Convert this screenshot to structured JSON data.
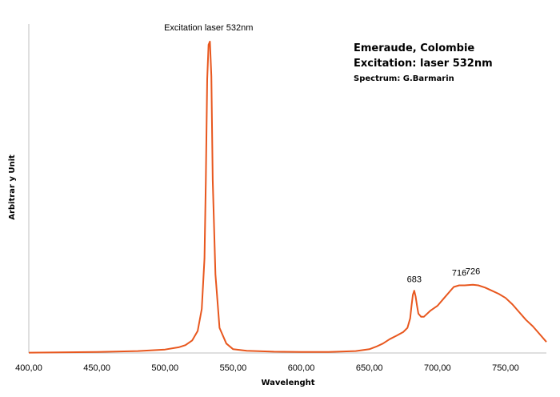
{
  "chart_data": {
    "type": "line",
    "title_lines": [
      "Emeraude, Colombie",
      "Excitation: laser 532nm",
      "Spectrum: G.Barmarin"
    ],
    "xlabel": "Wavelenght",
    "ylabel": "Arbitrar y Unit",
    "xlim": [
      400,
      780
    ],
    "ylim": [
      0,
      1
    ],
    "x_ticks": [
      {
        "value": 400,
        "label": "400,00"
      },
      {
        "value": 450,
        "label": "450,00"
      },
      {
        "value": 500,
        "label": "500,00"
      },
      {
        "value": 550,
        "label": "550,00"
      },
      {
        "value": 600,
        "label": "600,00"
      },
      {
        "value": 650,
        "label": "650,00"
      },
      {
        "value": 700,
        "label": "700,00"
      },
      {
        "value": 750,
        "label": "750,00"
      }
    ],
    "grid": false,
    "line_color": "#e8571e",
    "annotations": [
      {
        "text": "Excitation laser 532nm",
        "x": 532,
        "y": 1.0
      },
      {
        "text": "683",
        "x": 683,
        "y": 0.2
      },
      {
        "text": "716",
        "x": 716,
        "y": 0.22
      },
      {
        "text": "726",
        "x": 726,
        "y": 0.225
      }
    ],
    "series": [
      {
        "x": [
          400,
          450,
          480,
          500,
          510,
          515,
          520,
          524,
          527,
          529,
          530,
          531,
          532,
          533,
          534,
          535,
          537,
          540,
          545,
          550,
          560,
          580,
          600,
          620,
          640,
          650,
          655,
          660,
          665,
          670,
          675,
          678,
          680,
          681,
          682,
          683,
          684,
          685,
          686,
          688,
          690,
          695,
          700,
          705,
          710,
          712,
          716,
          720,
          726,
          730,
          735,
          740,
          745,
          750,
          755,
          760,
          765,
          770,
          775,
          780
        ],
        "y": [
          0.001,
          0.003,
          0.006,
          0.011,
          0.018,
          0.025,
          0.04,
          0.07,
          0.14,
          0.3,
          0.55,
          0.87,
          0.98,
          0.99,
          0.88,
          0.55,
          0.25,
          0.08,
          0.03,
          0.012,
          0.007,
          0.004,
          0.003,
          0.003,
          0.006,
          0.012,
          0.02,
          0.03,
          0.044,
          0.055,
          0.067,
          0.08,
          0.11,
          0.15,
          0.185,
          0.198,
          0.18,
          0.15,
          0.125,
          0.115,
          0.115,
          0.135,
          0.15,
          0.175,
          0.2,
          0.21,
          0.215,
          0.215,
          0.217,
          0.215,
          0.208,
          0.198,
          0.188,
          0.175,
          0.155,
          0.13,
          0.105,
          0.085,
          0.06,
          0.035
        ]
      }
    ]
  }
}
